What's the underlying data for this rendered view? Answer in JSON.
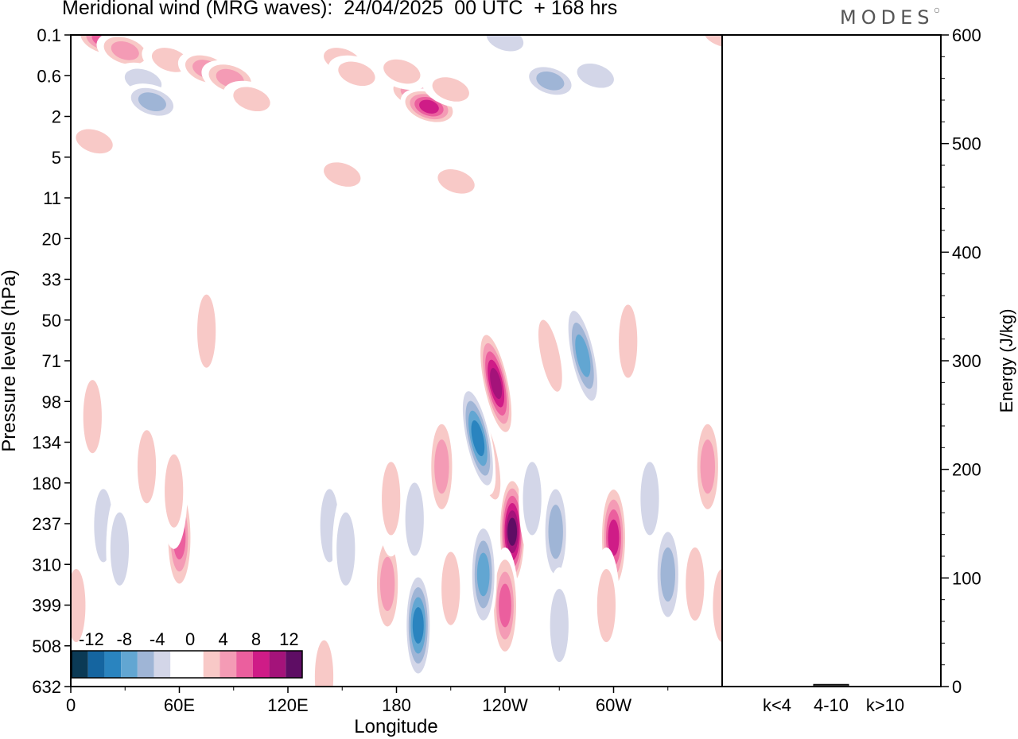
{
  "header": {
    "title": "Meridional wind (MRG waves):  24/04/2025  00 UTC  + 168 hrs",
    "logo": "MODES"
  },
  "chart_data": [
    {
      "type": "heatmap",
      "title": "Meridional wind (MRG waves):  24/04/2025  00 UTC  + 168 hrs",
      "xlabel": "Longitude",
      "ylabel": "Pressure levels (hPa)",
      "x_ticks": [
        "0",
        "60E",
        "120E",
        "180",
        "120W",
        "60W"
      ],
      "y_ticks": [
        "0.1",
        "0.6",
        "2",
        "5",
        "11",
        "20",
        "33",
        "50",
        "71",
        "98",
        "134",
        "180",
        "237",
        "310",
        "399",
        "508",
        "632"
      ],
      "colorbar": {
        "tick_labels": [
          "-12",
          "-8",
          "-4",
          "0",
          "4",
          "8",
          "12"
        ],
        "colors": [
          "#0b3a55",
          "#1565a0",
          "#2a84bf",
          "#62a6d2",
          "#9fb5d6",
          "#d3d6e8",
          "#ffffff",
          "#ffffff",
          "#f8c9c7",
          "#f49bb5",
          "#eb5f9e",
          "#cf1c87",
          "#a4137a",
          "#5e0d64"
        ]
      },
      "cells": [
        {
          "lon": 18,
          "p": 0.12,
          "v": 8
        },
        {
          "lon": 30,
          "p": 0.2,
          "v": 6
        },
        {
          "lon": 55,
          "p": 0.3,
          "v": 3
        },
        {
          "lon": 75,
          "p": 0.45,
          "v": 6
        },
        {
          "lon": 88,
          "p": 0.65,
          "v": 5
        },
        {
          "lon": 40,
          "p": 0.7,
          "v": -4
        },
        {
          "lon": 45,
          "p": 1.3,
          "v": -6
        },
        {
          "lon": 35,
          "p": 3,
          "v": -2
        },
        {
          "lon": 100,
          "p": 1.2,
          "v": 3
        },
        {
          "lon": 120,
          "p": 0.2,
          "v": -2
        },
        {
          "lon": 150,
          "p": 0.3,
          "v": 3
        },
        {
          "lon": 158,
          "p": 0.55,
          "v": 4
        },
        {
          "lon": 190,
          "p": 1.0,
          "v": 6
        },
        {
          "lon": 198,
          "p": 1.5,
          "v": 9
        },
        {
          "lon": 183,
          "p": 0.5,
          "v": 3
        },
        {
          "lon": 210,
          "p": 0.9,
          "v": 4
        },
        {
          "lon": 240,
          "p": 0.12,
          "v": -4
        },
        {
          "lon": 265,
          "p": 0.7,
          "v": -6
        },
        {
          "lon": 290,
          "p": 0.6,
          "v": -3
        },
        {
          "lon": 275,
          "p": 2.5,
          "v": -2
        },
        {
          "lon": 150,
          "p": 7,
          "v": 4
        },
        {
          "lon": 138,
          "p": 3,
          "v": -2
        },
        {
          "lon": 13,
          "p": 3.5,
          "v": 3
        },
        {
          "lon": 320,
          "p": 6,
          "v": -2
        },
        {
          "lon": 360,
          "p": 0.1,
          "v": 3
        },
        {
          "lon": 213,
          "p": 8,
          "v": 3
        },
        {
          "lon": 55,
          "p": 10,
          "v": -2
        },
        {
          "lon": 250,
          "p": 23,
          "v": -2
        },
        {
          "lon": 30,
          "p": 55,
          "v": -2
        },
        {
          "lon": 75,
          "p": 55,
          "v": 3
        },
        {
          "lon": 265,
          "p": 68,
          "v": 3
        },
        {
          "lon": 283,
          "p": 68,
          "v": -8
        },
        {
          "lon": 308,
          "p": 60,
          "v": 3
        },
        {
          "lon": 235,
          "p": 85,
          "v": 12
        },
        {
          "lon": 230,
          "p": 150,
          "v": 6
        },
        {
          "lon": 225,
          "p": 130,
          "v": -9
        },
        {
          "lon": 244,
          "p": 250,
          "v": 14
        },
        {
          "lon": 240,
          "p": 400,
          "v": 8
        },
        {
          "lon": 228,
          "p": 330,
          "v": -8
        },
        {
          "lon": 255,
          "p": 200,
          "v": -4
        },
        {
          "lon": 268,
          "p": 250,
          "v": -6
        },
        {
          "lon": 270,
          "p": 450,
          "v": -3
        },
        {
          "lon": 300,
          "p": 260,
          "v": 10
        },
        {
          "lon": 296,
          "p": 400,
          "v": 4
        },
        {
          "lon": 330,
          "p": 330,
          "v": -6
        },
        {
          "lon": 320,
          "p": 200,
          "v": -3
        },
        {
          "lon": 352,
          "p": 160,
          "v": 6
        },
        {
          "lon": 345,
          "p": 350,
          "v": 3
        },
        {
          "lon": 360,
          "p": 400,
          "v": 3
        },
        {
          "lon": 205,
          "p": 160,
          "v": 5
        },
        {
          "lon": 190,
          "p": 230,
          "v": -4
        },
        {
          "lon": 192,
          "p": 450,
          "v": -9
        },
        {
          "lon": 175,
          "p": 350,
          "v": 5
        },
        {
          "lon": 177,
          "p": 200,
          "v": 3
        },
        {
          "lon": 210,
          "p": 360,
          "v": 4
        },
        {
          "lon": 12,
          "p": 110,
          "v": 4
        },
        {
          "lon": 18,
          "p": 240,
          "v": -4
        },
        {
          "lon": 27,
          "p": 280,
          "v": -3
        },
        {
          "lon": 60,
          "p": 260,
          "v": 8
        },
        {
          "lon": 57,
          "p": 190,
          "v": 4
        },
        {
          "lon": 42,
          "p": 160,
          "v": 3
        },
        {
          "lon": 82,
          "p": 240,
          "v": -2
        },
        {
          "lon": 95,
          "p": 230,
          "v": -2
        },
        {
          "lon": 127,
          "p": 250,
          "v": -2
        },
        {
          "lon": 143,
          "p": 240,
          "v": -4
        },
        {
          "lon": 152,
          "p": 280,
          "v": -3
        },
        {
          "lon": 3,
          "p": 400,
          "v": 3
        },
        {
          "lon": 115,
          "p": 320,
          "v": 2
        },
        {
          "lon": 140,
          "p": 600,
          "v": 3
        }
      ]
    },
    {
      "type": "bar",
      "categories": [
        "k<4",
        "4-10",
        "k>10"
      ],
      "values": [
        0,
        2,
        0
      ],
      "ylabel": "Energy (J/kg)",
      "ylim": [
        0,
        600
      ],
      "y_ticks": [
        "0",
        "100",
        "200",
        "300",
        "400",
        "500",
        "600"
      ]
    }
  ]
}
